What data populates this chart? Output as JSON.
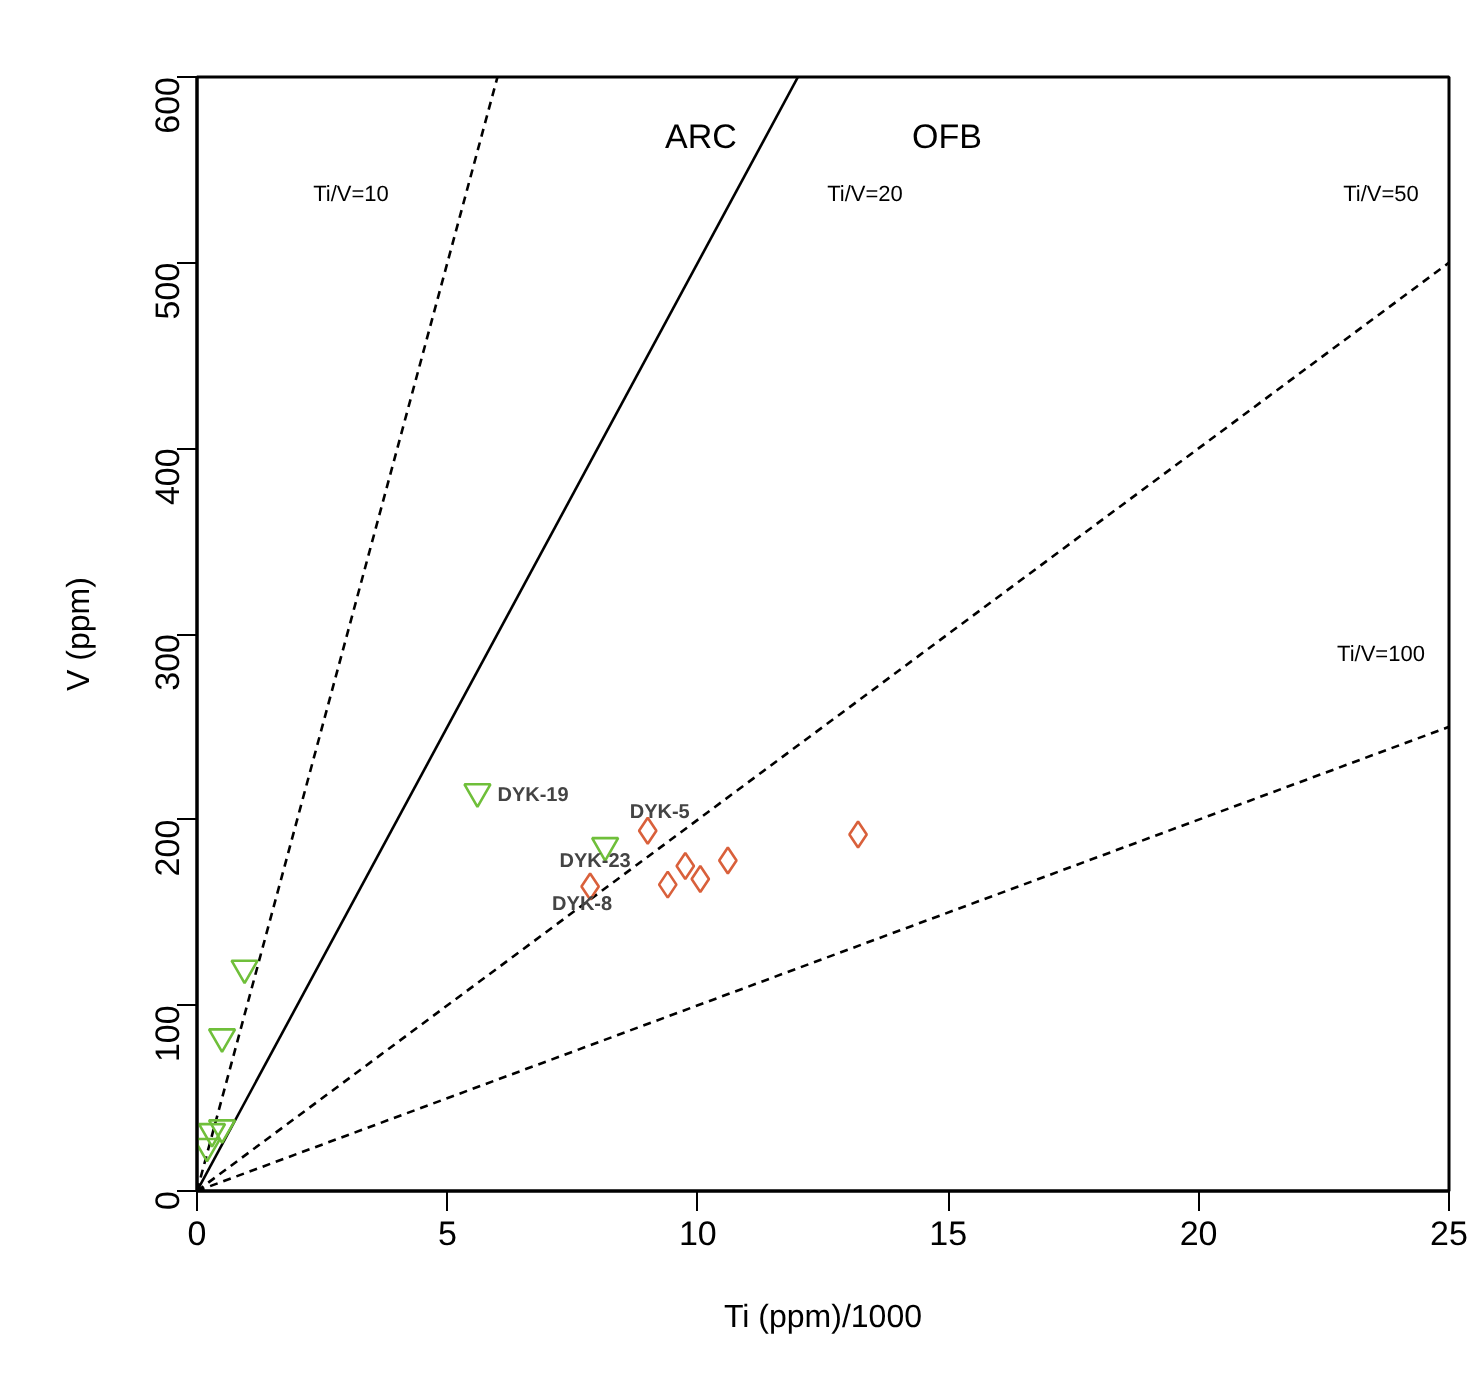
{
  "chart_data": {
    "type": "scatter",
    "xlabel": "Ti (ppm)/1000",
    "ylabel": "V (ppm)",
    "xlim": [
      0,
      25
    ],
    "ylim": [
      0,
      600
    ],
    "xticks": [
      0,
      5,
      10,
      15,
      20,
      25
    ],
    "yticks": [
      0,
      100,
      200,
      300,
      400,
      500,
      600
    ],
    "grid": false,
    "series": [
      {
        "type": "line",
        "color": "#000000",
        "line_style": "dashed",
        "x": [
          0,
          6
        ],
        "values": [
          0,
          600
        ]
      },
      {
        "type": "line",
        "color": "#000000",
        "line_style": "solid",
        "x": [
          0,
          12
        ],
        "values": [
          0,
          600
        ]
      },
      {
        "type": "line",
        "color": "#000000",
        "line_style": "dashed",
        "x": [
          0,
          25
        ],
        "values": [
          0,
          500
        ]
      },
      {
        "type": "line",
        "color": "#000000",
        "line_style": "dashed",
        "x": [
          0,
          25
        ],
        "values": [
          0,
          250
        ]
      },
      {
        "marker": "triangle",
        "color": "#6fbf3a",
        "x": [
          5.6,
          8.15,
          0.95,
          0.5,
          0.3,
          0.5,
          0.2
        ],
        "values": [
          215,
          186,
          120,
          83,
          32,
          34,
          24
        ]
      },
      {
        "marker": "diamond",
        "color": "#d9603b",
        "x": [
          7.85,
          9.0,
          9.4,
          9.75,
          10.05,
          10.6,
          13.2
        ],
        "values": [
          164,
          194,
          165,
          175,
          168,
          178,
          192
        ]
      }
    ],
    "annotations": [
      "Ti/V=10",
      "Ti/V=20",
      "Ti/V=50",
      "Ti/V=100",
      "ARC",
      "OFB",
      {
        "text": "DYK-19",
        "x": 5.6,
        "y": 215
      },
      {
        "text": "DYK-5",
        "x": 9.0,
        "y": 194
      },
      {
        "text": "DYK-23",
        "x": 8.15,
        "y": 186
      },
      {
        "text": "DYK-8",
        "x": 7.85,
        "y": 164
      }
    ]
  }
}
